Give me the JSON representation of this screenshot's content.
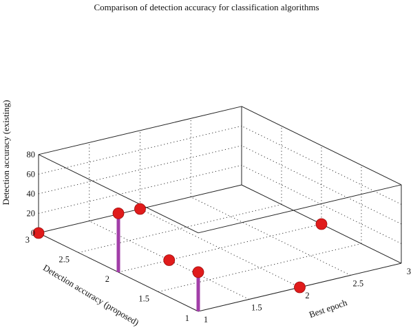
{
  "chart_data": {
    "type": "scatter3d",
    "title": "Comparison of detection accuracy for classification algorithms",
    "xlabel": "Best epoch",
    "ylabel": "Detection accuracy (proposed)",
    "zlabel": "Detection accuracy (existing)",
    "xlim": [
      1,
      3
    ],
    "ylim": [
      1,
      3
    ],
    "zlim": [
      0,
      80
    ],
    "x_ticks": [
      1,
      1.5,
      2,
      2.5,
      3
    ],
    "y_ticks": [
      1,
      1.5,
      2,
      2.5,
      3
    ],
    "z_ticks": [
      0,
      20,
      40,
      60,
      80
    ],
    "x_tick_labels": [
      "1",
      "1.5",
      "2",
      "2.5",
      "3"
    ],
    "y_tick_labels": [
      "1",
      "1.5",
      "2",
      "2.5",
      "3"
    ],
    "z_tick_labels": [
      "0",
      "20",
      "40",
      "60",
      "80"
    ],
    "grid": true,
    "marker_color": "#e01b1b",
    "stem_color": "#a23ea8",
    "points": [
      {
        "x": 1,
        "y": 2,
        "z": 60,
        "stem": true
      },
      {
        "x": 1,
        "y": 1,
        "z": 40,
        "stem": true
      },
      {
        "x": 1,
        "y": 3,
        "z": 0,
        "stem": false
      },
      {
        "x": 2,
        "y": 1,
        "z": 0,
        "stem": false
      },
      {
        "x": 1.5,
        "y": 2,
        "z": 0,
        "stem": false
      },
      {
        "x": 2,
        "y": 3,
        "z": 0,
        "stem": false
      },
      {
        "x": 3,
        "y": 2,
        "z": 0,
        "stem": false
      }
    ]
  }
}
